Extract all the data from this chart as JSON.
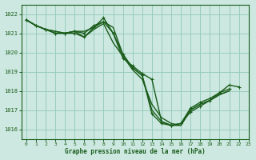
{
  "background_color": "#cce8e0",
  "grid_color": "#99ccbb",
  "line_color": "#1a5c1a",
  "title": "Graphe pression niveau de la mer (hPa)",
  "xlim": [
    -0.5,
    23
  ],
  "ylim": [
    1015.5,
    1022.5
  ],
  "yticks": [
    1016,
    1017,
    1018,
    1019,
    1020,
    1021,
    1022
  ],
  "xticks": [
    0,
    1,
    2,
    3,
    4,
    5,
    6,
    7,
    8,
    9,
    10,
    11,
    12,
    13,
    14,
    15,
    16,
    17,
    18,
    19,
    20,
    21,
    22,
    23
  ],
  "series": [
    {
      "x": [
        0,
        1,
        2,
        3,
        4,
        5,
        6,
        7,
        8,
        9,
        10,
        11,
        12,
        13,
        14,
        15,
        16,
        17,
        18,
        19,
        20,
        21
      ],
      "y": [
        1021.7,
        1021.4,
        1021.2,
        1021.0,
        1021.0,
        1021.1,
        1021.0,
        1021.4,
        1021.6,
        1021.0,
        1019.9,
        1019.2,
        1018.8,
        1016.8,
        1016.3,
        1016.2,
        1016.3,
        1017.1,
        1017.4,
        1017.6,
        1017.9,
        1018.1
      ],
      "marker": true,
      "lw": 1.0
    },
    {
      "x": [
        0,
        1,
        2,
        3,
        4,
        5,
        6,
        7,
        8,
        9,
        10,
        11,
        12,
        13,
        14,
        15,
        16,
        17,
        18,
        19,
        20,
        21
      ],
      "y": [
        1021.7,
        1021.4,
        1021.2,
        1021.1,
        1021.0,
        1021.1,
        1021.1,
        1021.3,
        1021.6,
        1021.3,
        1019.9,
        1019.2,
        1018.8,
        1017.0,
        1016.4,
        1016.2,
        1016.2,
        1017.0,
        1017.3,
        1017.5,
        1017.8,
        1018.0
      ],
      "marker": false,
      "lw": 1.0
    },
    {
      "x": [
        0,
        1,
        2,
        3,
        4,
        5,
        6,
        7,
        8,
        9,
        10,
        11,
        12,
        13,
        14,
        15,
        16,
        17,
        18,
        19,
        20,
        21
      ],
      "y": [
        1021.7,
        1021.4,
        1021.2,
        1021.1,
        1021.0,
        1021.1,
        1020.8,
        1021.2,
        1021.5,
        1020.5,
        1019.8,
        1019.1,
        1018.6,
        1017.3,
        1016.6,
        1016.3,
        1016.2,
        1017.0,
        1017.3,
        1017.5,
        1017.8,
        1018.0
      ],
      "marker": false,
      "lw": 1.0
    },
    {
      "x": [
        0,
        1,
        2,
        3,
        4,
        5,
        6,
        7,
        8,
        9,
        10,
        11,
        12,
        13,
        14,
        15,
        16,
        17,
        18,
        19,
        20,
        21,
        22
      ],
      "y": [
        1021.7,
        1021.4,
        1021.2,
        1021.0,
        1021.0,
        1021.0,
        1020.8,
        1021.3,
        1021.8,
        1021.0,
        1019.7,
        1019.3,
        1018.9,
        1018.6,
        1016.4,
        1016.2,
        1016.3,
        1016.9,
        1017.2,
        1017.5,
        1017.9,
        1018.3,
        1018.2
      ],
      "marker": true,
      "lw": 1.0
    }
  ]
}
